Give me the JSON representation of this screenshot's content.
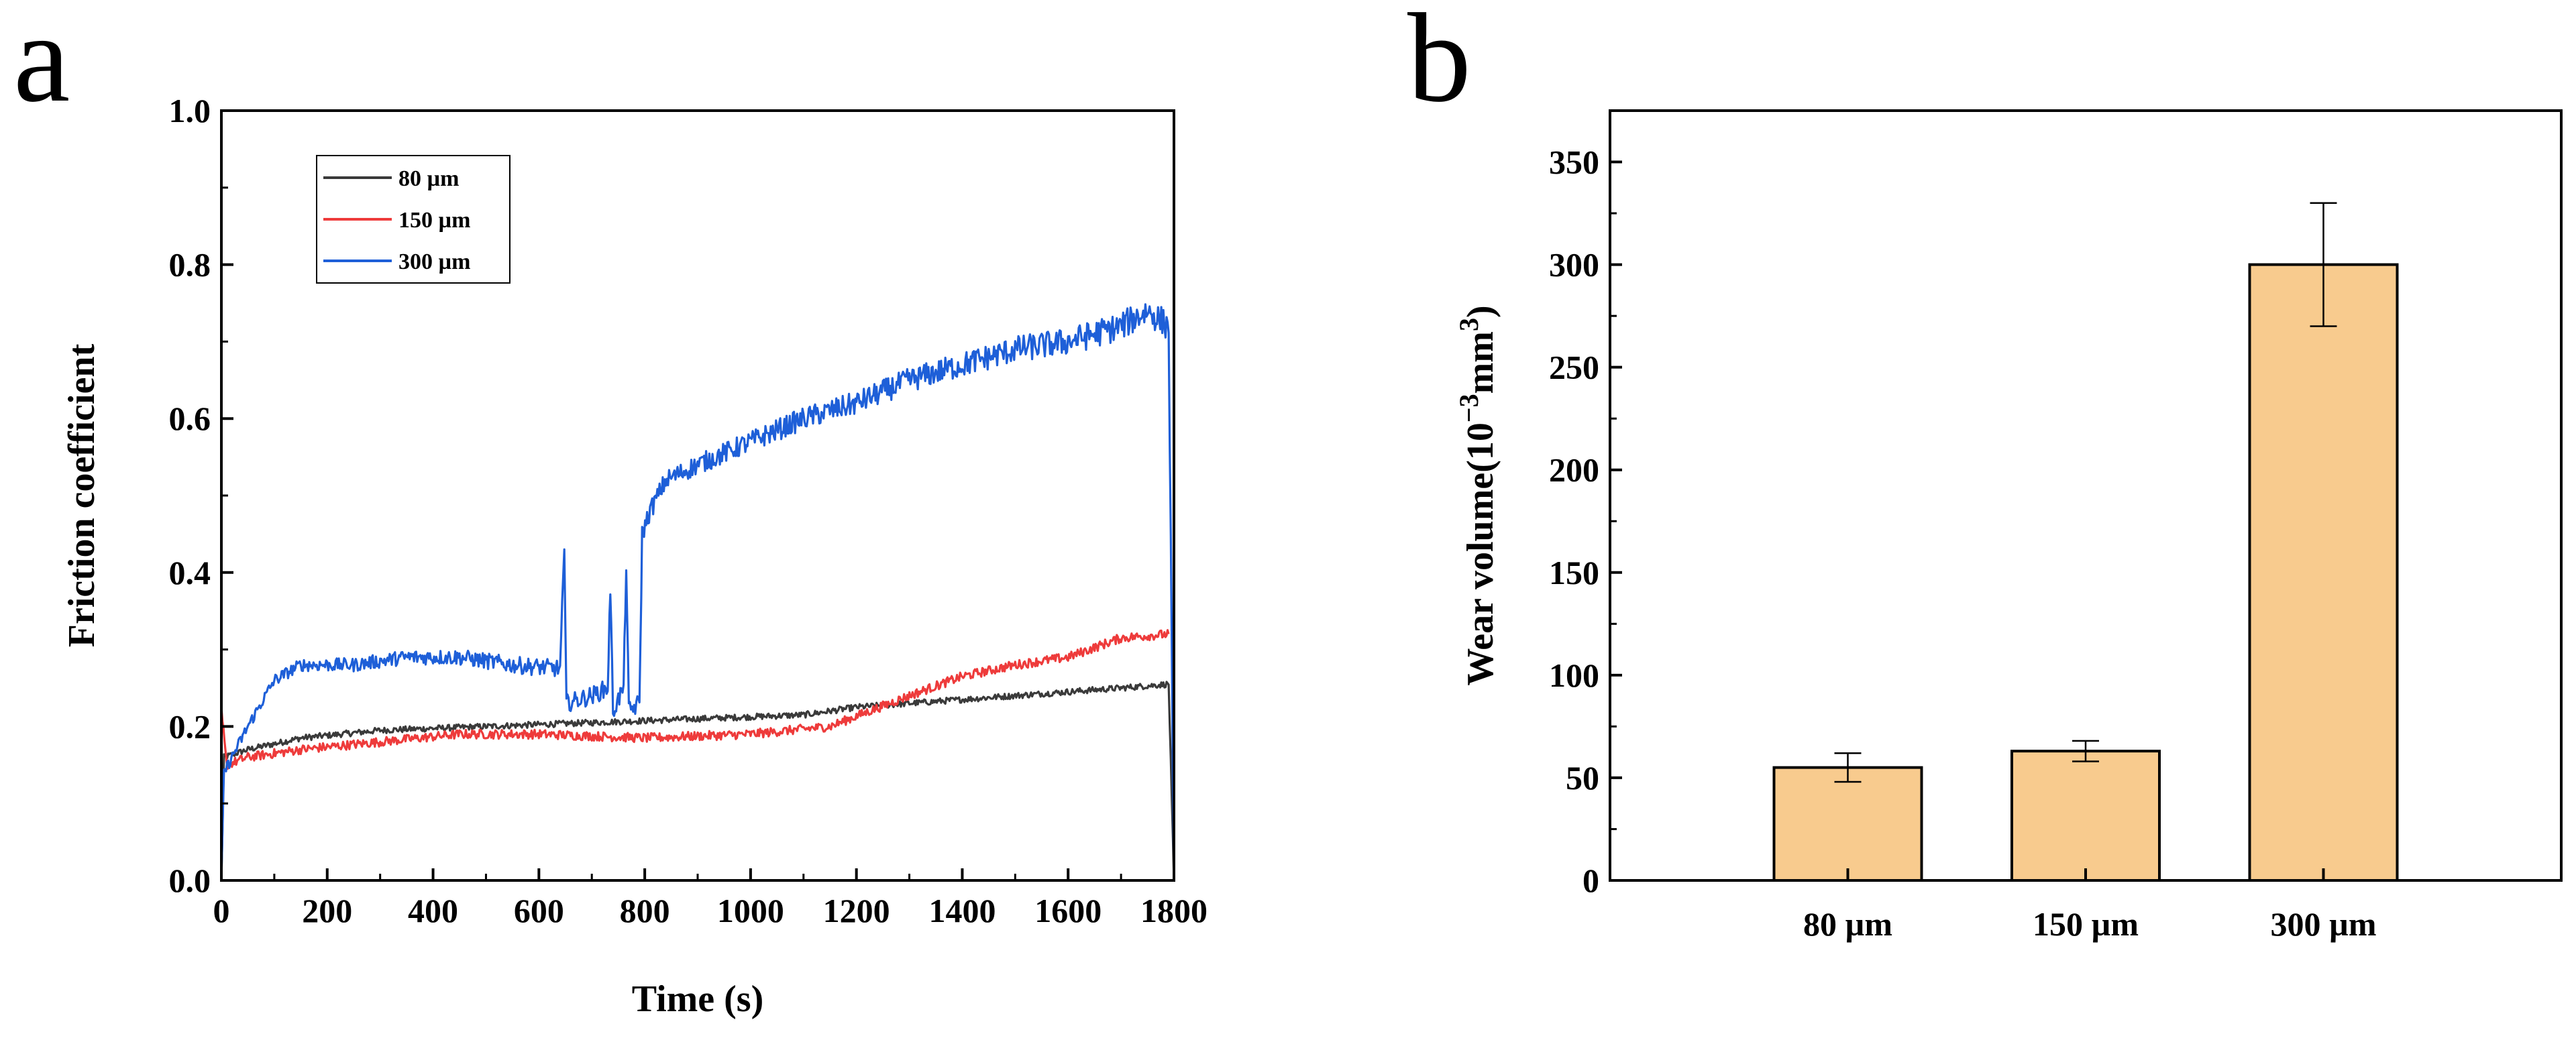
{
  "chart_data": [
    {
      "panel": "a",
      "type": "line",
      "title": "",
      "xlabel": "Time (s)",
      "ylabel": "Friction coefficient",
      "xlim": [
        0,
        1800
      ],
      "ylim": [
        0.0,
        1.0
      ],
      "xticks": [
        "0",
        "200",
        "400",
        "600",
        "800",
        "1000",
        "1200",
        "1400",
        "1600",
        "1800"
      ],
      "yticks": [
        "0.0",
        "0.2",
        "0.4",
        "0.6",
        "0.8",
        "1.0"
      ],
      "legend_position": "top-left",
      "series": [
        {
          "name": "80 µm",
          "color": "#3a3a3a",
          "noise": 0.004,
          "points": [
            [
              0,
              0.0
            ],
            [
              5,
              0.16
            ],
            [
              50,
              0.17
            ],
            [
              150,
              0.185
            ],
            [
              300,
              0.195
            ],
            [
              500,
              0.2
            ],
            [
              700,
              0.205
            ],
            [
              900,
              0.21
            ],
            [
              1100,
              0.215
            ],
            [
              1200,
              0.225
            ],
            [
              1300,
              0.23
            ],
            [
              1400,
              0.235
            ],
            [
              1500,
              0.24
            ],
            [
              1600,
              0.245
            ],
            [
              1700,
              0.25
            ],
            [
              1790,
              0.255
            ],
            [
              1800,
              0.0
            ]
          ]
        },
        {
          "name": "150 µm",
          "color": "#ee3b3b",
          "noise": 0.006,
          "points": [
            [
              0,
              0.22
            ],
            [
              10,
              0.15
            ],
            [
              50,
              0.16
            ],
            [
              150,
              0.17
            ],
            [
              300,
              0.18
            ],
            [
              450,
              0.19
            ],
            [
              600,
              0.19
            ],
            [
              800,
              0.185
            ],
            [
              1000,
              0.19
            ],
            [
              1150,
              0.2
            ],
            [
              1300,
              0.24
            ],
            [
              1400,
              0.265
            ],
            [
              1500,
              0.28
            ],
            [
              1600,
              0.29
            ],
            [
              1700,
              0.315
            ],
            [
              1790,
              0.32
            ]
          ]
        },
        {
          "name": "300 µm",
          "color": "#1e5fd8",
          "noise": 0.012,
          "points": [
            [
              0,
              0.0
            ],
            [
              5,
              0.14
            ],
            [
              50,
              0.2
            ],
            [
              100,
              0.26
            ],
            [
              150,
              0.28
            ],
            [
              250,
              0.28
            ],
            [
              350,
              0.29
            ],
            [
              450,
              0.29
            ],
            [
              550,
              0.28
            ],
            [
              640,
              0.275
            ],
            [
              648,
              0.43
            ],
            [
              652,
              0.23
            ],
            [
              700,
              0.24
            ],
            [
              730,
              0.25
            ],
            [
              735,
              0.38
            ],
            [
              740,
              0.22
            ],
            [
              760,
              0.25
            ],
            [
              765,
              0.41
            ],
            [
              770,
              0.22
            ],
            [
              790,
              0.23
            ],
            [
              795,
              0.45
            ],
            [
              810,
              0.48
            ],
            [
              840,
              0.52
            ],
            [
              900,
              0.54
            ],
            [
              1000,
              0.57
            ],
            [
              1100,
              0.6
            ],
            [
              1200,
              0.62
            ],
            [
              1300,
              0.65
            ],
            [
              1400,
              0.67
            ],
            [
              1500,
              0.69
            ],
            [
              1600,
              0.7
            ],
            [
              1700,
              0.72
            ],
            [
              1750,
              0.74
            ],
            [
              1790,
              0.72
            ],
            [
              1800,
              0.0
            ]
          ]
        }
      ]
    },
    {
      "panel": "b",
      "type": "bar",
      "title": "",
      "xlabel": "",
      "ylabel": "Wear volume(10^-3 mm^3)",
      "ylabel_parts": {
        "pre": "Wear volume(10",
        "sup1": "−3",
        "mid": "mm",
        "sup2": "3",
        "post": ")"
      },
      "ylim": [
        0,
        375
      ],
      "yticks": [
        "0",
        "50",
        "100",
        "150",
        "200",
        "250",
        "300",
        "350"
      ],
      "categories": [
        "80 µm",
        "150 µm",
        "300 µm"
      ],
      "values": [
        55,
        63,
        300
      ],
      "errors": [
        7,
        5,
        30
      ],
      "bar_color": "#f8cb8e",
      "edge_color": "#000000"
    }
  ],
  "panel_labels": [
    "a",
    "b"
  ]
}
